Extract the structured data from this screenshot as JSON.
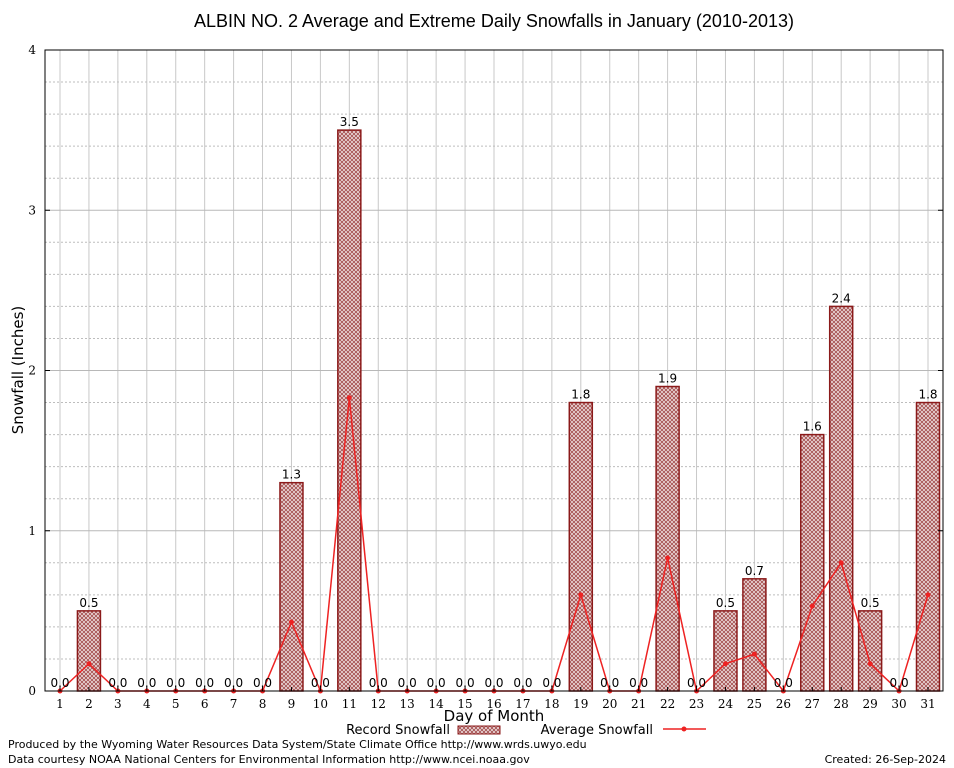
{
  "chart_data": {
    "type": "bar",
    "title": "ALBIN NO. 2 Average and Extreme Daily Snowfalls in January (2010-2013)",
    "xlabel": "Day of Month",
    "ylabel": "Snowfall (Inches)",
    "ylim": [
      0,
      4
    ],
    "yticks": [
      "0",
      "1",
      "2",
      "3",
      "4"
    ],
    "grid": true,
    "legend_position": "bottom",
    "categories": [
      "1",
      "2",
      "3",
      "4",
      "5",
      "6",
      "7",
      "8",
      "9",
      "10",
      "11",
      "12",
      "13",
      "14",
      "15",
      "16",
      "17",
      "18",
      "19",
      "20",
      "21",
      "22",
      "23",
      "24",
      "25",
      "26",
      "27",
      "28",
      "29",
      "30",
      "31"
    ],
    "series": [
      {
        "name": "Record Snowfall",
        "type": "bar",
        "color": "#8b1a1a",
        "values": [
          0.0,
          0.5,
          0.0,
          0.0,
          0.0,
          0.0,
          0.0,
          0.0,
          1.3,
          0.0,
          3.5,
          0.0,
          0.0,
          0.0,
          0.0,
          0.0,
          0.0,
          0.0,
          1.8,
          0.0,
          0.0,
          1.9,
          0.0,
          0.5,
          0.7,
          0.0,
          1.6,
          2.4,
          0.5,
          0.0,
          1.8
        ],
        "labels": [
          "0.0",
          "0.5",
          "0.0",
          "0.0",
          "0.0",
          "0.0",
          "0.0",
          "0.0",
          "1.3",
          "0.0",
          "3.5",
          "0.0",
          "0.0",
          "0.0",
          "0.0",
          "0.0",
          "0.0",
          "0.0",
          "1.8",
          "0.0",
          "0.0",
          "1.9",
          "0.0",
          "0.5",
          "0.7",
          "0.0",
          "1.6",
          "2.4",
          "0.5",
          "0.0",
          "1.8"
        ]
      },
      {
        "name": "Average Snowfall",
        "type": "line",
        "color": "#ee2222",
        "values": [
          0.0,
          0.17,
          0.0,
          0.0,
          0.0,
          0.0,
          0.0,
          0.0,
          0.43,
          0.0,
          1.83,
          0.0,
          0.0,
          0.0,
          0.0,
          0.0,
          0.0,
          0.0,
          0.6,
          0.0,
          0.0,
          0.83,
          0.0,
          0.17,
          0.23,
          0.0,
          0.53,
          0.8,
          0.17,
          0.0,
          0.6
        ]
      }
    ]
  },
  "footer": {
    "produced_by": "Produced by the Wyoming Water Resources Data System/State Climate Office http://www.wrds.uwyo.edu",
    "courtesy": "Data courtesy NOAA National Centers for Environmental Information http://www.ncei.noaa.gov",
    "created": "Created:  26-Sep-2024"
  }
}
